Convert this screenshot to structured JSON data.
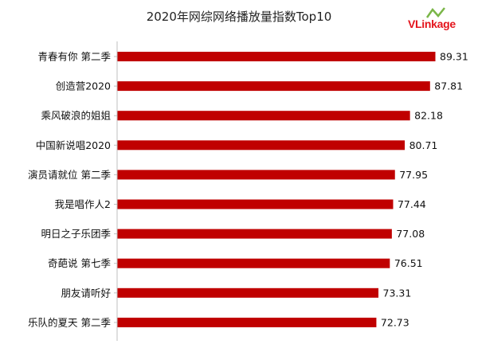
{
  "header": {
    "title": "2020年网综网络播放量指数Top10"
  },
  "logo": {
    "text_v": "V",
    "text_rest": "Linkage",
    "brand_color": "#e4141c",
    "accent_color": "#7ab648"
  },
  "chart_data": {
    "type": "bar",
    "orientation": "horizontal",
    "title": "2020年网综网络播放量指数Top10",
    "categories": [
      "青春有你 第二季",
      "创造营2020",
      "乘风破浪的姐姐",
      "中国新说唱2020",
      "演员请就位 第二季",
      "我是唱作人2",
      "明日之子乐团季",
      "奇葩说 第七季",
      "朋友请听好",
      "乐队的夏天 第二季"
    ],
    "values": [
      89.31,
      87.81,
      82.18,
      80.71,
      77.95,
      77.44,
      77.08,
      76.51,
      73.31,
      72.73
    ],
    "value_labels": [
      "89.31",
      "87.81",
      "82.18",
      "80.71",
      "77.95",
      "77.44",
      "77.08",
      "76.51",
      "73.31",
      "72.73"
    ],
    "xlim": [
      0,
      100
    ],
    "grid": false,
    "legend": "none",
    "bar_color": "#c00000"
  }
}
